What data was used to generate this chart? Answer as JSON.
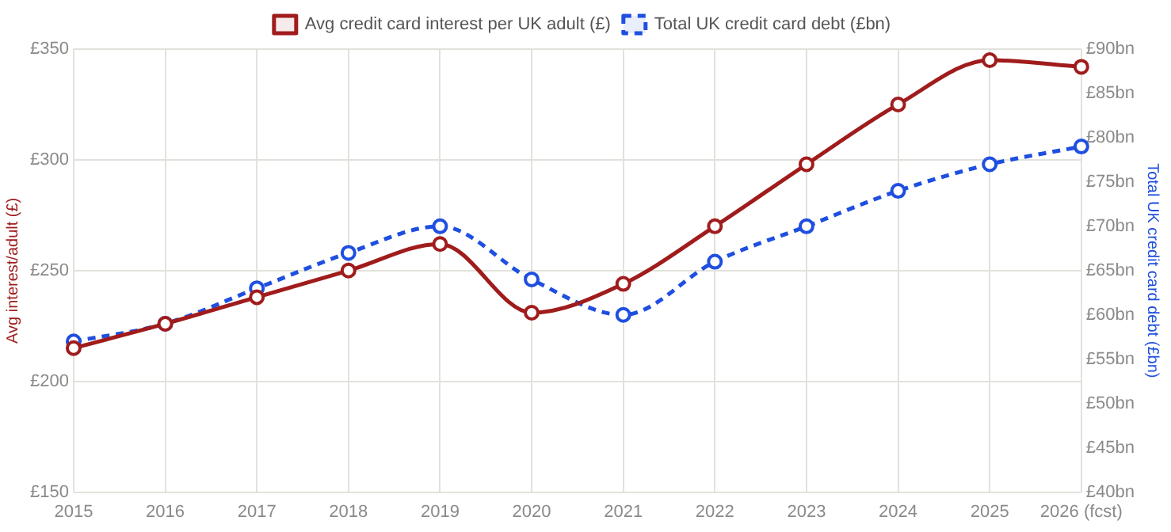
{
  "chart_data": {
    "type": "line",
    "ylabel": "Avg interest/adult (£)",
    "y2label": "Total UK credit card debt (£bn)",
    "categories": [
      "2015",
      "2016",
      "2017",
      "2018",
      "2019",
      "2020",
      "2021",
      "2022",
      "2023",
      "2024",
      "2025",
      "2026 (fcst)"
    ],
    "series": [
      {
        "name": "Avg credit card interest per UK adult (£)",
        "color": "#a01c1c",
        "line_style": "solid",
        "values": [
          215,
          226,
          238,
          250,
          262,
          231,
          244,
          270,
          298,
          325,
          345,
          342
        ]
      },
      {
        "name": "Total UK credit card debt (£bn)",
        "color": "#1f4fe0",
        "line_style": "dashed",
        "axis": "y2",
        "values": [
          57,
          59,
          63,
          67,
          70,
          64,
          60,
          66,
          70,
          74,
          77,
          79
        ]
      }
    ],
    "ylim": [
      150,
      350
    ],
    "yticks": [
      {
        "value": 150,
        "label": "£150"
      },
      {
        "value": 200,
        "label": "£200"
      },
      {
        "value": 250,
        "label": "£250"
      },
      {
        "value": 300,
        "label": "£300"
      },
      {
        "value": 350,
        "label": "£350"
      }
    ],
    "y2lim": [
      40,
      90
    ],
    "y2ticks": [
      {
        "value": 40,
        "label": "£40bn"
      },
      {
        "value": 45,
        "label": "£45bn"
      },
      {
        "value": 50,
        "label": "£50bn"
      },
      {
        "value": 55,
        "label": "£55bn"
      },
      {
        "value": 60,
        "label": "£60bn"
      },
      {
        "value": 65,
        "label": "£65bn"
      },
      {
        "value": 70,
        "label": "£70bn"
      },
      {
        "value": 75,
        "label": "£75bn"
      },
      {
        "value": 80,
        "label": "£80bn"
      },
      {
        "value": 85,
        "label": "£85bn"
      },
      {
        "value": 90,
        "label": "£90bn"
      }
    ],
    "grid": true,
    "legend": "top",
    "marker": "circle"
  }
}
